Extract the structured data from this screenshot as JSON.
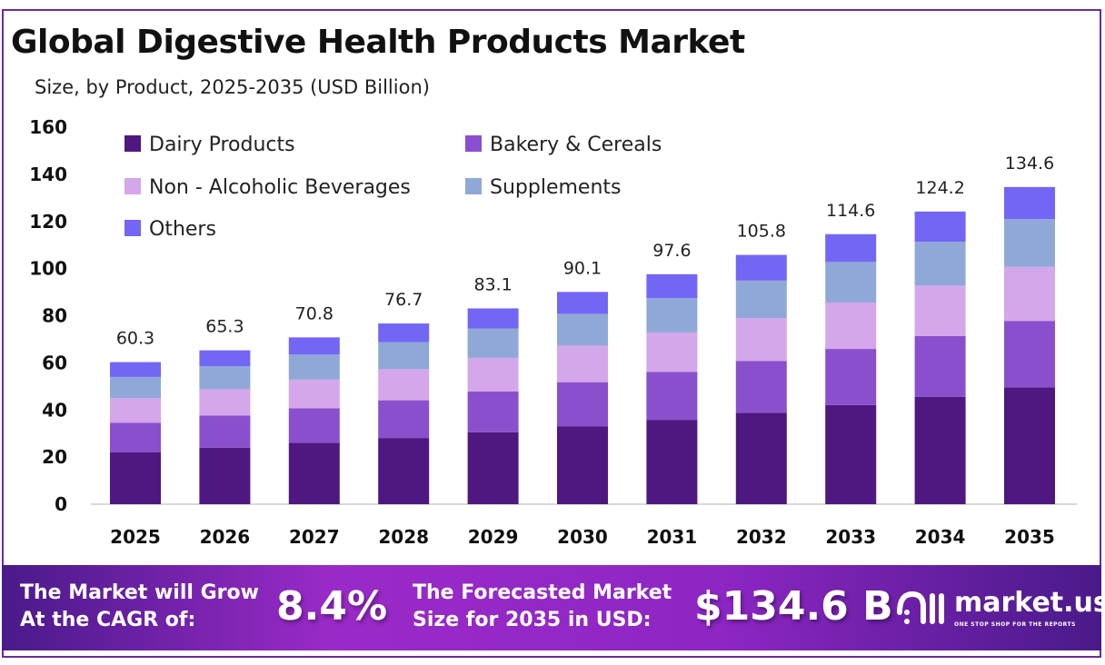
{
  "chart_data": {
    "type": "bar",
    "stacked": true,
    "title": "Global Digestive Health Products Market",
    "subtitle": "Size, by Product, 2025-2035 (USD Billion)",
    "categories": [
      "2025",
      "2026",
      "2027",
      "2028",
      "2029",
      "2030",
      "2031",
      "2032",
      "2033",
      "2034",
      "2035"
    ],
    "totals": [
      "60.3",
      "65.3",
      "70.8",
      "76.7",
      "83.1",
      "90.1",
      "97.6",
      "105.8",
      "114.6",
      "124.2",
      "134.6"
    ],
    "series": [
      {
        "name": "Dairy Products",
        "color": "#4f1780",
        "values": [
          22.1,
          24.0,
          26.0,
          28.1,
          30.5,
          33.1,
          35.8,
          38.8,
          42.1,
          45.6,
          49.6
        ]
      },
      {
        "name": "Bakery & Cereals",
        "color": "#8a4fcc",
        "values": [
          12.5,
          13.6,
          14.7,
          16.0,
          17.3,
          18.7,
          20.3,
          22.0,
          23.8,
          25.8,
          28.2
        ]
      },
      {
        "name": "Non - Alcoholic Beverages",
        "color": "#d4a6ea",
        "values": [
          10.4,
          11.2,
          12.2,
          13.2,
          14.3,
          15.5,
          16.8,
          18.2,
          19.7,
          21.4,
          22.9
        ]
      },
      {
        "name": "Supplements",
        "color": "#8fa8d8",
        "values": [
          9.0,
          9.8,
          10.6,
          11.5,
          12.5,
          13.5,
          14.6,
          15.9,
          17.2,
          18.6,
          20.3
        ]
      },
      {
        "name": "Others",
        "color": "#7366f5",
        "values": [
          6.3,
          6.7,
          7.3,
          7.9,
          8.5,
          9.3,
          10.1,
          10.9,
          11.8,
          12.8,
          13.6
        ]
      }
    ],
    "yticks": [
      "0",
      "20",
      "40",
      "60",
      "80",
      "100",
      "120",
      "140",
      "160"
    ],
    "ylim": [
      0,
      160
    ],
    "grid": false,
    "legend_position": "top-left"
  },
  "banner": {
    "cagr_label_1": "The Market will Grow",
    "cagr_label_2": "At the CAGR of:",
    "cagr_value": "8.4%",
    "forecast_label_1": "The Forecasted Market",
    "forecast_label_2": "Size for 2035 in USD:",
    "forecast_value": "$134.6 B",
    "logo_text": "market.us",
    "logo_tagline": "ONE STOP SHOP FOR THE REPORTS"
  }
}
